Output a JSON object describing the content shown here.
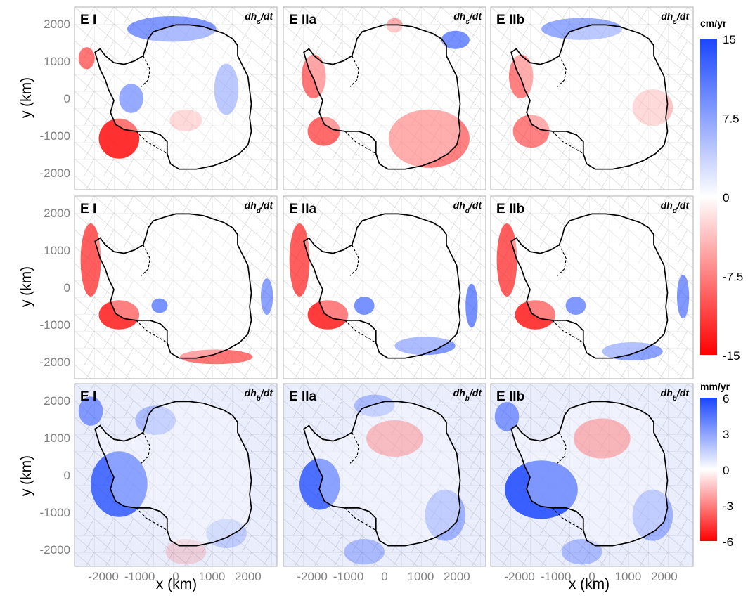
{
  "chart_data": {
    "type": "heatmap",
    "layout": "3x3 small multiples",
    "panel_titles": [
      "E I",
      "E IIa",
      "E IIb"
    ],
    "row_variables": [
      {
        "base": "dh",
        "sub": "s",
        "tail": "/dt"
      },
      {
        "base": "dh",
        "sub": "d",
        "tail": "/dt"
      },
      {
        "base": "dh",
        "sub": "b",
        "tail": "/dt"
      }
    ],
    "xlabel": "x (km)",
    "ylabel": "y (km)",
    "x_ticks": [
      "-2000",
      "-1000",
      "0",
      "1000",
      "2000"
    ],
    "x_tick_values": [
      -2000,
      -1000,
      0,
      1000,
      2000
    ],
    "y_ticks": [
      "2000",
      "1000",
      "0",
      "-1000",
      "-2000"
    ],
    "y_tick_values": [
      2000,
      1000,
      0,
      -1000,
      -2000
    ],
    "xlim": [
      -2800,
      2800
    ],
    "ylim": [
      -2450,
      2450
    ],
    "colorbars": [
      {
        "unit": "cm/yr",
        "ticks": [
          "15",
          "7.5",
          "0",
          "-7.5",
          "-15"
        ],
        "tick_values": [
          15,
          7.5,
          0,
          -7.5,
          -15
        ],
        "range": [
          -15,
          15
        ],
        "rows": [
          0,
          1
        ]
      },
      {
        "unit": "mm/yr",
        "ticks": [
          "6",
          "3",
          "0",
          "-3",
          "-6"
        ],
        "tick_values": [
          6,
          3,
          0,
          -3,
          -6
        ],
        "range": [
          -6,
          6
        ],
        "rows": [
          2
        ]
      }
    ],
    "colors": {
      "positive": "#1a46ff",
      "zero": "#ffffff",
      "negative": "#ff0000"
    },
    "grid": false
  }
}
